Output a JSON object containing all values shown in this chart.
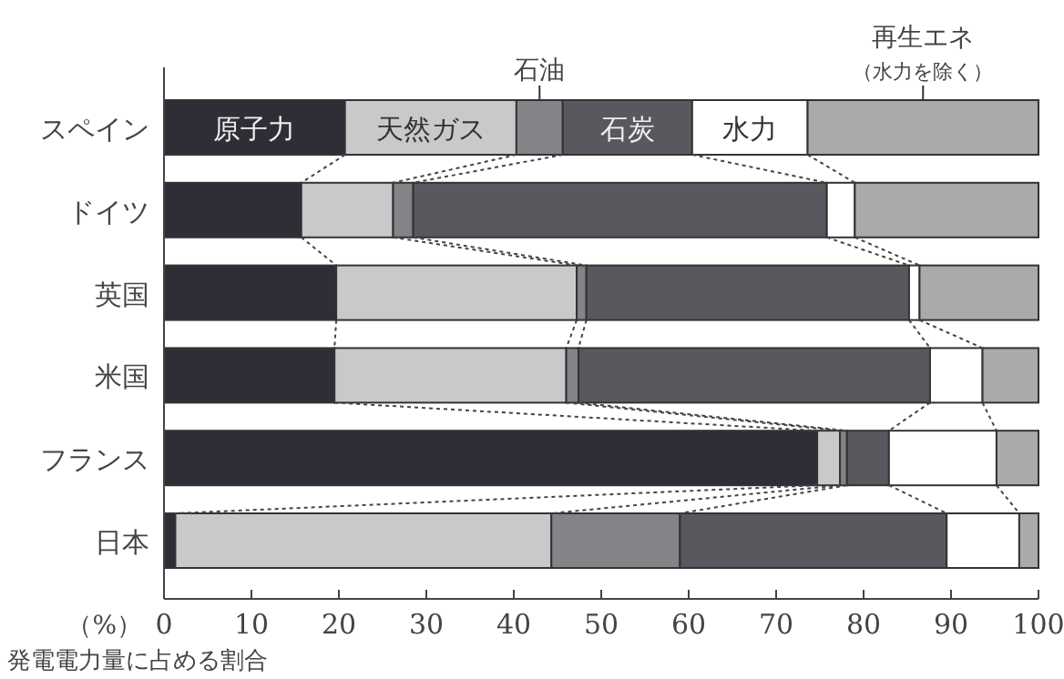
{
  "chart_data": {
    "type": "bar",
    "orientation": "horizontal",
    "stacked": true,
    "categories": [
      "スペイン",
      "ドイツ",
      "英国",
      "米国",
      "フランス",
      "日本"
    ],
    "series": [
      {
        "name": "原子力",
        "color": "#2e2f36",
        "values": [
          20.7,
          15.7,
          19.7,
          19.5,
          74.7,
          1.3
        ]
      },
      {
        "name": "天然ガス",
        "color": "#c8c9cb",
        "values": [
          19.6,
          10.5,
          27.5,
          26.5,
          2.6,
          43.0
        ]
      },
      {
        "name": "石油",
        "color": "#838487",
        "values": [
          5.3,
          2.3,
          1.1,
          1.4,
          0.8,
          14.7
        ]
      },
      {
        "name": "石炭",
        "color": "#58595f",
        "values": [
          14.8,
          47.3,
          36.9,
          40.2,
          4.8,
          30.5
        ]
      },
      {
        "name": "水力",
        "color": "#ffffff",
        "values": [
          13.2,
          3.2,
          1.2,
          6.0,
          12.3,
          8.3
        ]
      },
      {
        "name": "再生エネ（水力を除く）",
        "color": "#a9aaac",
        "values": [
          26.4,
          21.0,
          13.6,
          6.4,
          4.8,
          2.2
        ]
      }
    ],
    "xlim": [
      0,
      100
    ],
    "xticks": [
      0,
      10,
      20,
      30,
      40,
      50,
      60,
      70,
      80,
      90,
      100
    ],
    "xlabel": "（%）",
    "annotations": [
      "発電電力量に占める割合"
    ]
  }
}
